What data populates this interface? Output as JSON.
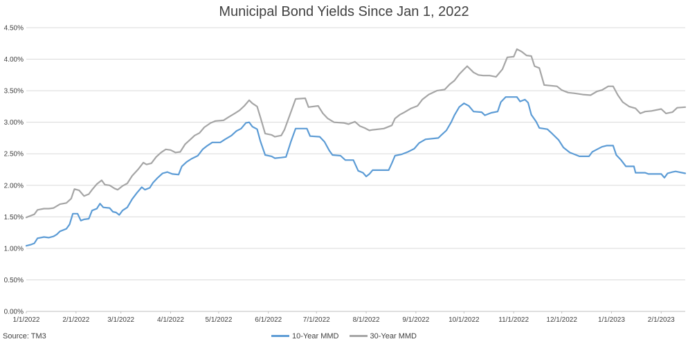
{
  "chart_data": {
    "type": "line",
    "title": "Municipal Bond Yields Since Jan 1, 2022",
    "x_tick_labels": [
      "1/1/2022",
      "2/1/2022",
      "3/1/2022",
      "4/1/2022",
      "5/1/2022",
      "6/1/2022",
      "7/1/2022",
      "8/1/2022",
      "9/1/2022",
      "10/1/2022",
      "11/1/2022",
      "12/1/2022",
      "1/1/2023",
      "2/1/2023"
    ],
    "y_tick_labels": [
      "0.00%",
      "0.50%",
      "1.00%",
      "1.50%",
      "2.00%",
      "2.50%",
      "3.00%",
      "3.50%",
      "4.00%",
      "4.50%"
    ],
    "ylim": [
      0,
      4.5
    ],
    "xlim": [
      "2022-01-01",
      "2023-02-16"
    ],
    "grid": true,
    "legend_position": "bottom",
    "source": "Source: TM3",
    "series": [
      {
        "name": "10-Year MMD",
        "color": "#5B9BD5",
        "points": [
          [
            "2022-01-01",
            1.04
          ],
          [
            "2022-01-04",
            1.06
          ],
          [
            "2022-01-06",
            1.08
          ],
          [
            "2022-01-08",
            1.16
          ],
          [
            "2022-01-12",
            1.18
          ],
          [
            "2022-01-15",
            1.17
          ],
          [
            "2022-01-18",
            1.19
          ],
          [
            "2022-01-20",
            1.22
          ],
          [
            "2022-01-22",
            1.27
          ],
          [
            "2022-01-26",
            1.31
          ],
          [
            "2022-01-28",
            1.38
          ],
          [
            "2022-01-30",
            1.55
          ],
          [
            "2022-02-02",
            1.55
          ],
          [
            "2022-02-04",
            1.44
          ],
          [
            "2022-02-06",
            1.46
          ],
          [
            "2022-02-09",
            1.47
          ],
          [
            "2022-02-11",
            1.6
          ],
          [
            "2022-02-14",
            1.63
          ],
          [
            "2022-02-16",
            1.71
          ],
          [
            "2022-02-18",
            1.65
          ],
          [
            "2022-02-22",
            1.64
          ],
          [
            "2022-02-24",
            1.58
          ],
          [
            "2022-02-26",
            1.57
          ],
          [
            "2022-02-28",
            1.53
          ],
          [
            "2022-03-02",
            1.6
          ],
          [
            "2022-03-05",
            1.65
          ],
          [
            "2022-03-08",
            1.78
          ],
          [
            "2022-03-11",
            1.88
          ],
          [
            "2022-03-14",
            1.97
          ],
          [
            "2022-03-16",
            1.93
          ],
          [
            "2022-03-19",
            1.96
          ],
          [
            "2022-03-21",
            2.04
          ],
          [
            "2022-03-24",
            2.12
          ],
          [
            "2022-03-27",
            2.19
          ],
          [
            "2022-03-30",
            2.21
          ],
          [
            "2022-04-02",
            2.18
          ],
          [
            "2022-04-06",
            2.17
          ],
          [
            "2022-04-08",
            2.3
          ],
          [
            "2022-04-11",
            2.37
          ],
          [
            "2022-04-14",
            2.42
          ],
          [
            "2022-04-18",
            2.47
          ],
          [
            "2022-04-21",
            2.57
          ],
          [
            "2022-04-24",
            2.63
          ],
          [
            "2022-04-27",
            2.68
          ],
          [
            "2022-05-02",
            2.68
          ],
          [
            "2022-05-05",
            2.73
          ],
          [
            "2022-05-09",
            2.79
          ],
          [
            "2022-05-12",
            2.86
          ],
          [
            "2022-05-15",
            2.9
          ],
          [
            "2022-05-18",
            2.99
          ],
          [
            "2022-05-20",
            3.0
          ],
          [
            "2022-05-22",
            2.93
          ],
          [
            "2022-05-25",
            2.89
          ],
          [
            "2022-05-27",
            2.7
          ],
          [
            "2022-05-30",
            2.48
          ],
          [
            "2022-06-03",
            2.46
          ],
          [
            "2022-06-05",
            2.43
          ],
          [
            "2022-06-09",
            2.44
          ],
          [
            "2022-06-12",
            2.45
          ],
          [
            "2022-06-15",
            2.69
          ],
          [
            "2022-06-18",
            2.9
          ],
          [
            "2022-06-25",
            2.9
          ],
          [
            "2022-06-27",
            2.78
          ],
          [
            "2022-07-03",
            2.77
          ],
          [
            "2022-07-06",
            2.69
          ],
          [
            "2022-07-09",
            2.55
          ],
          [
            "2022-07-11",
            2.48
          ],
          [
            "2022-07-16",
            2.47
          ],
          [
            "2022-07-19",
            2.4
          ],
          [
            "2022-07-24",
            2.4
          ],
          [
            "2022-07-27",
            2.23
          ],
          [
            "2022-07-30",
            2.2
          ],
          [
            "2022-08-01",
            2.14
          ],
          [
            "2022-08-03",
            2.18
          ],
          [
            "2022-08-05",
            2.24
          ],
          [
            "2022-08-15",
            2.24
          ],
          [
            "2022-08-17",
            2.35
          ],
          [
            "2022-08-19",
            2.47
          ],
          [
            "2022-08-23",
            2.49
          ],
          [
            "2022-08-27",
            2.53
          ],
          [
            "2022-08-31",
            2.58
          ],
          [
            "2022-09-03",
            2.67
          ],
          [
            "2022-09-07",
            2.73
          ],
          [
            "2022-09-15",
            2.75
          ],
          [
            "2022-09-17",
            2.8
          ],
          [
            "2022-09-20",
            2.87
          ],
          [
            "2022-09-23",
            3.0
          ],
          [
            "2022-09-25",
            3.11
          ],
          [
            "2022-09-28",
            3.24
          ],
          [
            "2022-10-01",
            3.3
          ],
          [
            "2022-10-04",
            3.26
          ],
          [
            "2022-10-07",
            3.17
          ],
          [
            "2022-10-12",
            3.16
          ],
          [
            "2022-10-14",
            3.11
          ],
          [
            "2022-10-18",
            3.15
          ],
          [
            "2022-10-22",
            3.17
          ],
          [
            "2022-10-24",
            3.32
          ],
          [
            "2022-10-27",
            3.4
          ],
          [
            "2022-11-03",
            3.4
          ],
          [
            "2022-11-05",
            3.33
          ],
          [
            "2022-11-08",
            3.36
          ],
          [
            "2022-11-10",
            3.31
          ],
          [
            "2022-11-12",
            3.12
          ],
          [
            "2022-11-15",
            3.01
          ],
          [
            "2022-11-17",
            2.91
          ],
          [
            "2022-11-22",
            2.89
          ],
          [
            "2022-11-25",
            2.82
          ],
          [
            "2022-11-29",
            2.72
          ],
          [
            "2022-12-02",
            2.6
          ],
          [
            "2022-12-06",
            2.52
          ],
          [
            "2022-12-10",
            2.48
          ],
          [
            "2022-12-12",
            2.46
          ],
          [
            "2022-12-18",
            2.46
          ],
          [
            "2022-12-20",
            2.53
          ],
          [
            "2022-12-23",
            2.57
          ],
          [
            "2022-12-26",
            2.61
          ],
          [
            "2022-12-29",
            2.63
          ],
          [
            "2023-01-02",
            2.63
          ],
          [
            "2023-01-04",
            2.48
          ],
          [
            "2023-01-07",
            2.4
          ],
          [
            "2023-01-10",
            2.3
          ],
          [
            "2023-01-15",
            2.3
          ],
          [
            "2023-01-16",
            2.2
          ],
          [
            "2023-01-22",
            2.2
          ],
          [
            "2023-01-24",
            2.18
          ],
          [
            "2023-02-01",
            2.18
          ],
          [
            "2023-02-03",
            2.12
          ],
          [
            "2023-02-05",
            2.19
          ],
          [
            "2023-02-08",
            2.21
          ],
          [
            "2023-02-10",
            2.22
          ],
          [
            "2023-02-16",
            2.19
          ]
        ]
      },
      {
        "name": "30-Year MMD",
        "color": "#A5A5A5",
        "points": [
          [
            "2022-01-01",
            1.49
          ],
          [
            "2022-01-03",
            1.51
          ],
          [
            "2022-01-06",
            1.54
          ],
          [
            "2022-01-08",
            1.61
          ],
          [
            "2022-01-12",
            1.63
          ],
          [
            "2022-01-15",
            1.63
          ],
          [
            "2022-01-18",
            1.64
          ],
          [
            "2022-01-22",
            1.7
          ],
          [
            "2022-01-26",
            1.72
          ],
          [
            "2022-01-29",
            1.79
          ],
          [
            "2022-01-31",
            1.94
          ],
          [
            "2022-02-03",
            1.92
          ],
          [
            "2022-02-06",
            1.83
          ],
          [
            "2022-02-09",
            1.86
          ],
          [
            "2022-02-11",
            1.93
          ],
          [
            "2022-02-14",
            2.02
          ],
          [
            "2022-02-17",
            2.08
          ],
          [
            "2022-02-19",
            2.01
          ],
          [
            "2022-02-22",
            2.0
          ],
          [
            "2022-02-25",
            1.95
          ],
          [
            "2022-02-27",
            1.93
          ],
          [
            "2022-03-02",
            1.99
          ],
          [
            "2022-03-05",
            2.03
          ],
          [
            "2022-03-08",
            2.15
          ],
          [
            "2022-03-12",
            2.26
          ],
          [
            "2022-03-15",
            2.36
          ],
          [
            "2022-03-17",
            2.33
          ],
          [
            "2022-03-20",
            2.35
          ],
          [
            "2022-03-23",
            2.45
          ],
          [
            "2022-03-26",
            2.52
          ],
          [
            "2022-03-29",
            2.57
          ],
          [
            "2022-04-01",
            2.56
          ],
          [
            "2022-04-04",
            2.52
          ],
          [
            "2022-04-07",
            2.53
          ],
          [
            "2022-04-10",
            2.65
          ],
          [
            "2022-04-13",
            2.72
          ],
          [
            "2022-04-16",
            2.79
          ],
          [
            "2022-04-19",
            2.83
          ],
          [
            "2022-04-22",
            2.92
          ],
          [
            "2022-04-26",
            2.99
          ],
          [
            "2022-04-29",
            3.02
          ],
          [
            "2022-05-04",
            3.03
          ],
          [
            "2022-05-07",
            3.08
          ],
          [
            "2022-05-11",
            3.14
          ],
          [
            "2022-05-14",
            3.19
          ],
          [
            "2022-05-17",
            3.26
          ],
          [
            "2022-05-20",
            3.35
          ],
          [
            "2022-05-22",
            3.3
          ],
          [
            "2022-05-25",
            3.25
          ],
          [
            "2022-05-27",
            3.08
          ],
          [
            "2022-05-30",
            2.82
          ],
          [
            "2022-06-03",
            2.8
          ],
          [
            "2022-06-05",
            2.77
          ],
          [
            "2022-06-09",
            2.79
          ],
          [
            "2022-06-11",
            2.88
          ],
          [
            "2022-06-15",
            3.16
          ],
          [
            "2022-06-18",
            3.37
          ],
          [
            "2022-06-24",
            3.38
          ],
          [
            "2022-06-26",
            3.24
          ],
          [
            "2022-07-02",
            3.26
          ],
          [
            "2022-07-05",
            3.14
          ],
          [
            "2022-07-08",
            3.06
          ],
          [
            "2022-07-12",
            3.0
          ],
          [
            "2022-07-18",
            2.99
          ],
          [
            "2022-07-21",
            2.97
          ],
          [
            "2022-07-25",
            3.01
          ],
          [
            "2022-07-28",
            2.94
          ],
          [
            "2022-07-31",
            2.91
          ],
          [
            "2022-08-03",
            2.87
          ],
          [
            "2022-08-05",
            2.88
          ],
          [
            "2022-08-12",
            2.9
          ],
          [
            "2022-08-17",
            2.95
          ],
          [
            "2022-08-19",
            3.06
          ],
          [
            "2022-08-22",
            3.12
          ],
          [
            "2022-08-25",
            3.16
          ],
          [
            "2022-08-29",
            3.22
          ],
          [
            "2022-09-02",
            3.26
          ],
          [
            "2022-09-05",
            3.36
          ],
          [
            "2022-09-09",
            3.44
          ],
          [
            "2022-09-14",
            3.5
          ],
          [
            "2022-09-19",
            3.52
          ],
          [
            "2022-09-22",
            3.6
          ],
          [
            "2022-09-25",
            3.66
          ],
          [
            "2022-09-28",
            3.76
          ],
          [
            "2022-10-01",
            3.84
          ],
          [
            "2022-10-03",
            3.89
          ],
          [
            "2022-10-07",
            3.79
          ],
          [
            "2022-10-10",
            3.75
          ],
          [
            "2022-10-13",
            3.74
          ],
          [
            "2022-10-17",
            3.74
          ],
          [
            "2022-10-21",
            3.72
          ],
          [
            "2022-10-25",
            3.84
          ],
          [
            "2022-10-28",
            4.03
          ],
          [
            "2022-11-01",
            4.04
          ],
          [
            "2022-11-03",
            4.16
          ],
          [
            "2022-11-06",
            4.12
          ],
          [
            "2022-11-09",
            4.06
          ],
          [
            "2022-11-12",
            4.05
          ],
          [
            "2022-11-14",
            3.89
          ],
          [
            "2022-11-17",
            3.86
          ],
          [
            "2022-11-20",
            3.59
          ],
          [
            "2022-11-28",
            3.57
          ],
          [
            "2022-12-01",
            3.51
          ],
          [
            "2022-12-05",
            3.47
          ],
          [
            "2022-12-09",
            3.46
          ],
          [
            "2022-12-14",
            3.44
          ],
          [
            "2022-12-19",
            3.43
          ],
          [
            "2022-12-23",
            3.49
          ],
          [
            "2022-12-26",
            3.51
          ],
          [
            "2022-12-30",
            3.57
          ],
          [
            "2023-01-02",
            3.57
          ],
          [
            "2023-01-05",
            3.43
          ],
          [
            "2023-01-08",
            3.32
          ],
          [
            "2023-01-12",
            3.25
          ],
          [
            "2023-01-16",
            3.22
          ],
          [
            "2023-01-19",
            3.14
          ],
          [
            "2023-01-22",
            3.17
          ],
          [
            "2023-01-26",
            3.18
          ],
          [
            "2023-02-01",
            3.21
          ],
          [
            "2023-02-04",
            3.14
          ],
          [
            "2023-02-08",
            3.16
          ],
          [
            "2023-02-11",
            3.23
          ],
          [
            "2023-02-16",
            3.24
          ]
        ]
      }
    ]
  }
}
